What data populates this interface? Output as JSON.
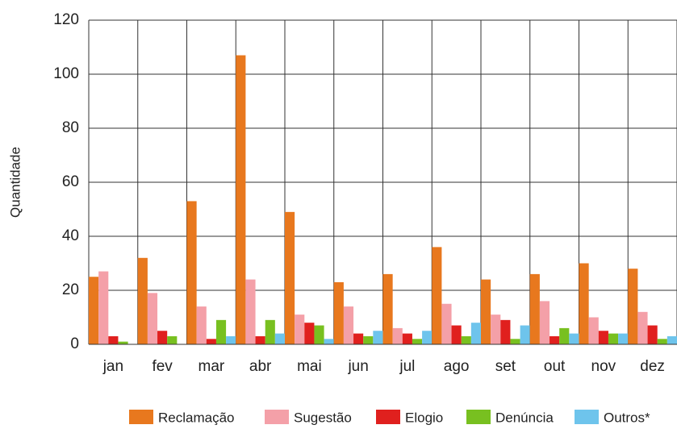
{
  "chart_data": {
    "type": "bar",
    "ylabel": "Quantidade",
    "categories": [
      "jan",
      "fev",
      "mar",
      "abr",
      "mai",
      "jun",
      "jul",
      "ago",
      "set",
      "out",
      "nov",
      "dez"
    ],
    "series": [
      {
        "name": "Reclamação",
        "color": "#e8781e",
        "values": [
          25,
          32,
          53,
          107,
          49,
          23,
          26,
          36,
          24,
          26,
          30,
          28
        ]
      },
      {
        "name": "Sugestão",
        "color": "#f4a0a8",
        "values": [
          27,
          19,
          14,
          24,
          11,
          14,
          6,
          15,
          11,
          16,
          10,
          12
        ]
      },
      {
        "name": "Elogio",
        "color": "#e0201e",
        "values": [
          3,
          5,
          2,
          3,
          8,
          4,
          4,
          7,
          9,
          3,
          5,
          7
        ]
      },
      {
        "name": "Denúncia",
        "color": "#78c020",
        "values": [
          1,
          3,
          9,
          9,
          7,
          3,
          2,
          3,
          2,
          6,
          4,
          2
        ]
      },
      {
        "name": "Outros*",
        "color": "#6ec4ec",
        "values": [
          0,
          0,
          3,
          4,
          2,
          5,
          5,
          8,
          7,
          4,
          4,
          3
        ]
      }
    ],
    "ylim": [
      0,
      120
    ],
    "yticks": [
      0,
      20,
      40,
      60,
      80,
      100,
      120
    ],
    "grid": true,
    "legend": "bottom"
  }
}
